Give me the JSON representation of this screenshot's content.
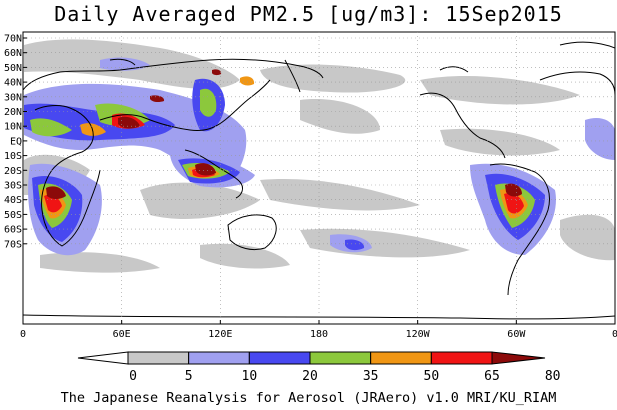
{
  "title": "Daily Averaged PM2.5 [ug/m3]: 15Sep2015",
  "footer": "The Japanese Reanalysis for Aerosol (JRAero) v1.0 MRI/KU_RIAM",
  "lat_labels": [
    "70N",
    "60N",
    "50N",
    "40N",
    "30N",
    "20N",
    "10N",
    "EQ",
    "10S",
    "20S",
    "30S",
    "40S",
    "50S",
    "60S",
    "70S"
  ],
  "lon_labels": [
    "0",
    "60E",
    "120E",
    "180",
    "120W",
    "60W",
    "0"
  ],
  "colorbar": {
    "ticks": [
      "0",
      "5",
      "10",
      "20",
      "35",
      "50",
      "65",
      "80"
    ],
    "colors": [
      "#ffffff",
      "#c8c8c8",
      "#a0a0f0",
      "#4848f0",
      "#8cc83c",
      "#f09614",
      "#f01414",
      "#8c0a0a"
    ]
  }
}
